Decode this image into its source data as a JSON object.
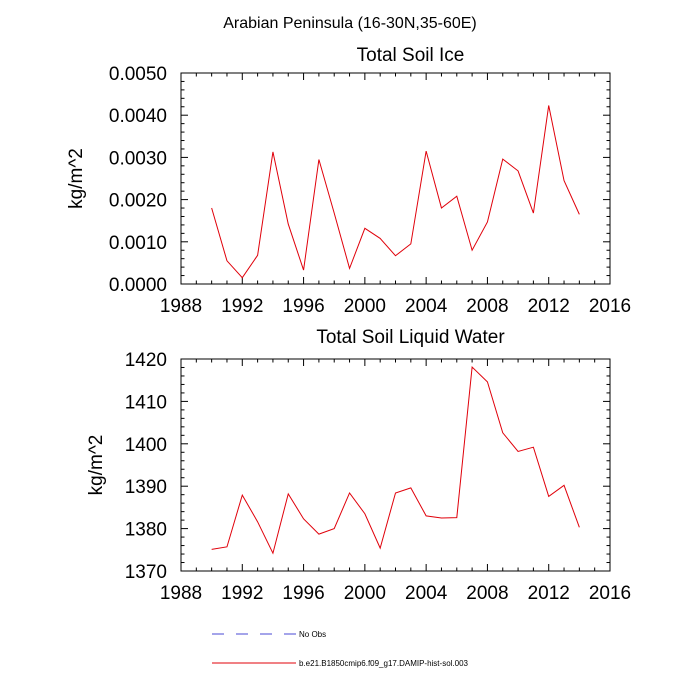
{
  "figure": {
    "suptitle": "Arabian Peninsula (16-30N,35-60E)"
  },
  "legend": {
    "items": [
      {
        "label": "No Obs",
        "color": "#4a4ad6",
        "style": "dashed"
      },
      {
        "label": "b.e21.B1850cmip6.f09_g17.DAMIP-hist-sol.003",
        "color": "#e0000a",
        "style": "solid"
      }
    ]
  },
  "chart_data": [
    {
      "type": "line",
      "title": "Total Soil Ice",
      "ylabel": "kg/m^2",
      "xlabel": "",
      "xlim": [
        1988,
        2016
      ],
      "ylim": [
        0,
        0.005
      ],
      "xticks": [
        1988,
        1992,
        1996,
        2000,
        2004,
        2008,
        2012,
        2016
      ],
      "yticks": [
        "0.0000",
        "0.0010",
        "0.0020",
        "0.0030",
        "0.0040",
        "0.0050"
      ],
      "ytick_values": [
        0,
        0.001,
        0.002,
        0.003,
        0.004,
        0.005
      ],
      "grid": false,
      "x": [
        1990,
        1991,
        1992,
        1993,
        1994,
        1995,
        1996,
        1997,
        1998,
        1999,
        2000,
        2001,
        2002,
        2003,
        2004,
        2005,
        2006,
        2007,
        2008,
        2009,
        2010,
        2011,
        2012,
        2013,
        2014
      ],
      "series": [
        {
          "name": "b.e21.B1850cmip6.f09_g17.DAMIP-hist-sol.003",
          "color": "#e0000a",
          "values": [
            0.0018,
            0.00055,
            0.00015,
            0.00068,
            0.00313,
            0.00142,
            0.00033,
            0.00295,
            0.00168,
            0.00037,
            0.00132,
            0.00108,
            0.00067,
            0.00095,
            0.00315,
            0.0018,
            0.00208,
            0.0008,
            0.00147,
            0.00296,
            0.00268,
            0.00168,
            0.00423,
            0.00245,
            0.00165
          ]
        }
      ]
    },
    {
      "type": "line",
      "title": "Total Soil Liquid Water",
      "ylabel": "kg/m^2",
      "xlabel": "",
      "xlim": [
        1988,
        2016
      ],
      "ylim": [
        1370,
        1420
      ],
      "xticks": [
        1988,
        1992,
        1996,
        2000,
        2004,
        2008,
        2012,
        2016
      ],
      "yticks": [
        "1370",
        "1380",
        "1390",
        "1400",
        "1410",
        "1420"
      ],
      "ytick_values": [
        1370,
        1380,
        1390,
        1400,
        1410,
        1420
      ],
      "grid": false,
      "x": [
        1990,
        1991,
        1992,
        1993,
        1994,
        1995,
        1996,
        1997,
        1998,
        1999,
        2000,
        2001,
        2002,
        2003,
        2004,
        2005,
        2006,
        2007,
        2008,
        2009,
        2010,
        2011,
        2012,
        2013,
        2014
      ],
      "series": [
        {
          "name": "b.e21.B1850cmip6.f09_g17.DAMIP-hist-sol.003",
          "color": "#e0000a",
          "values": [
            1375.1,
            1375.7,
            1387.9,
            1381.6,
            1374.2,
            1388.2,
            1382.3,
            1378.7,
            1380.0,
            1388.4,
            1383.5,
            1375.4,
            1388.4,
            1389.6,
            1383.0,
            1382.5,
            1382.6,
            1418.1,
            1414.6,
            1402.6,
            1398.2,
            1399.2,
            1387.6,
            1390.2,
            1380.3
          ]
        }
      ]
    }
  ]
}
